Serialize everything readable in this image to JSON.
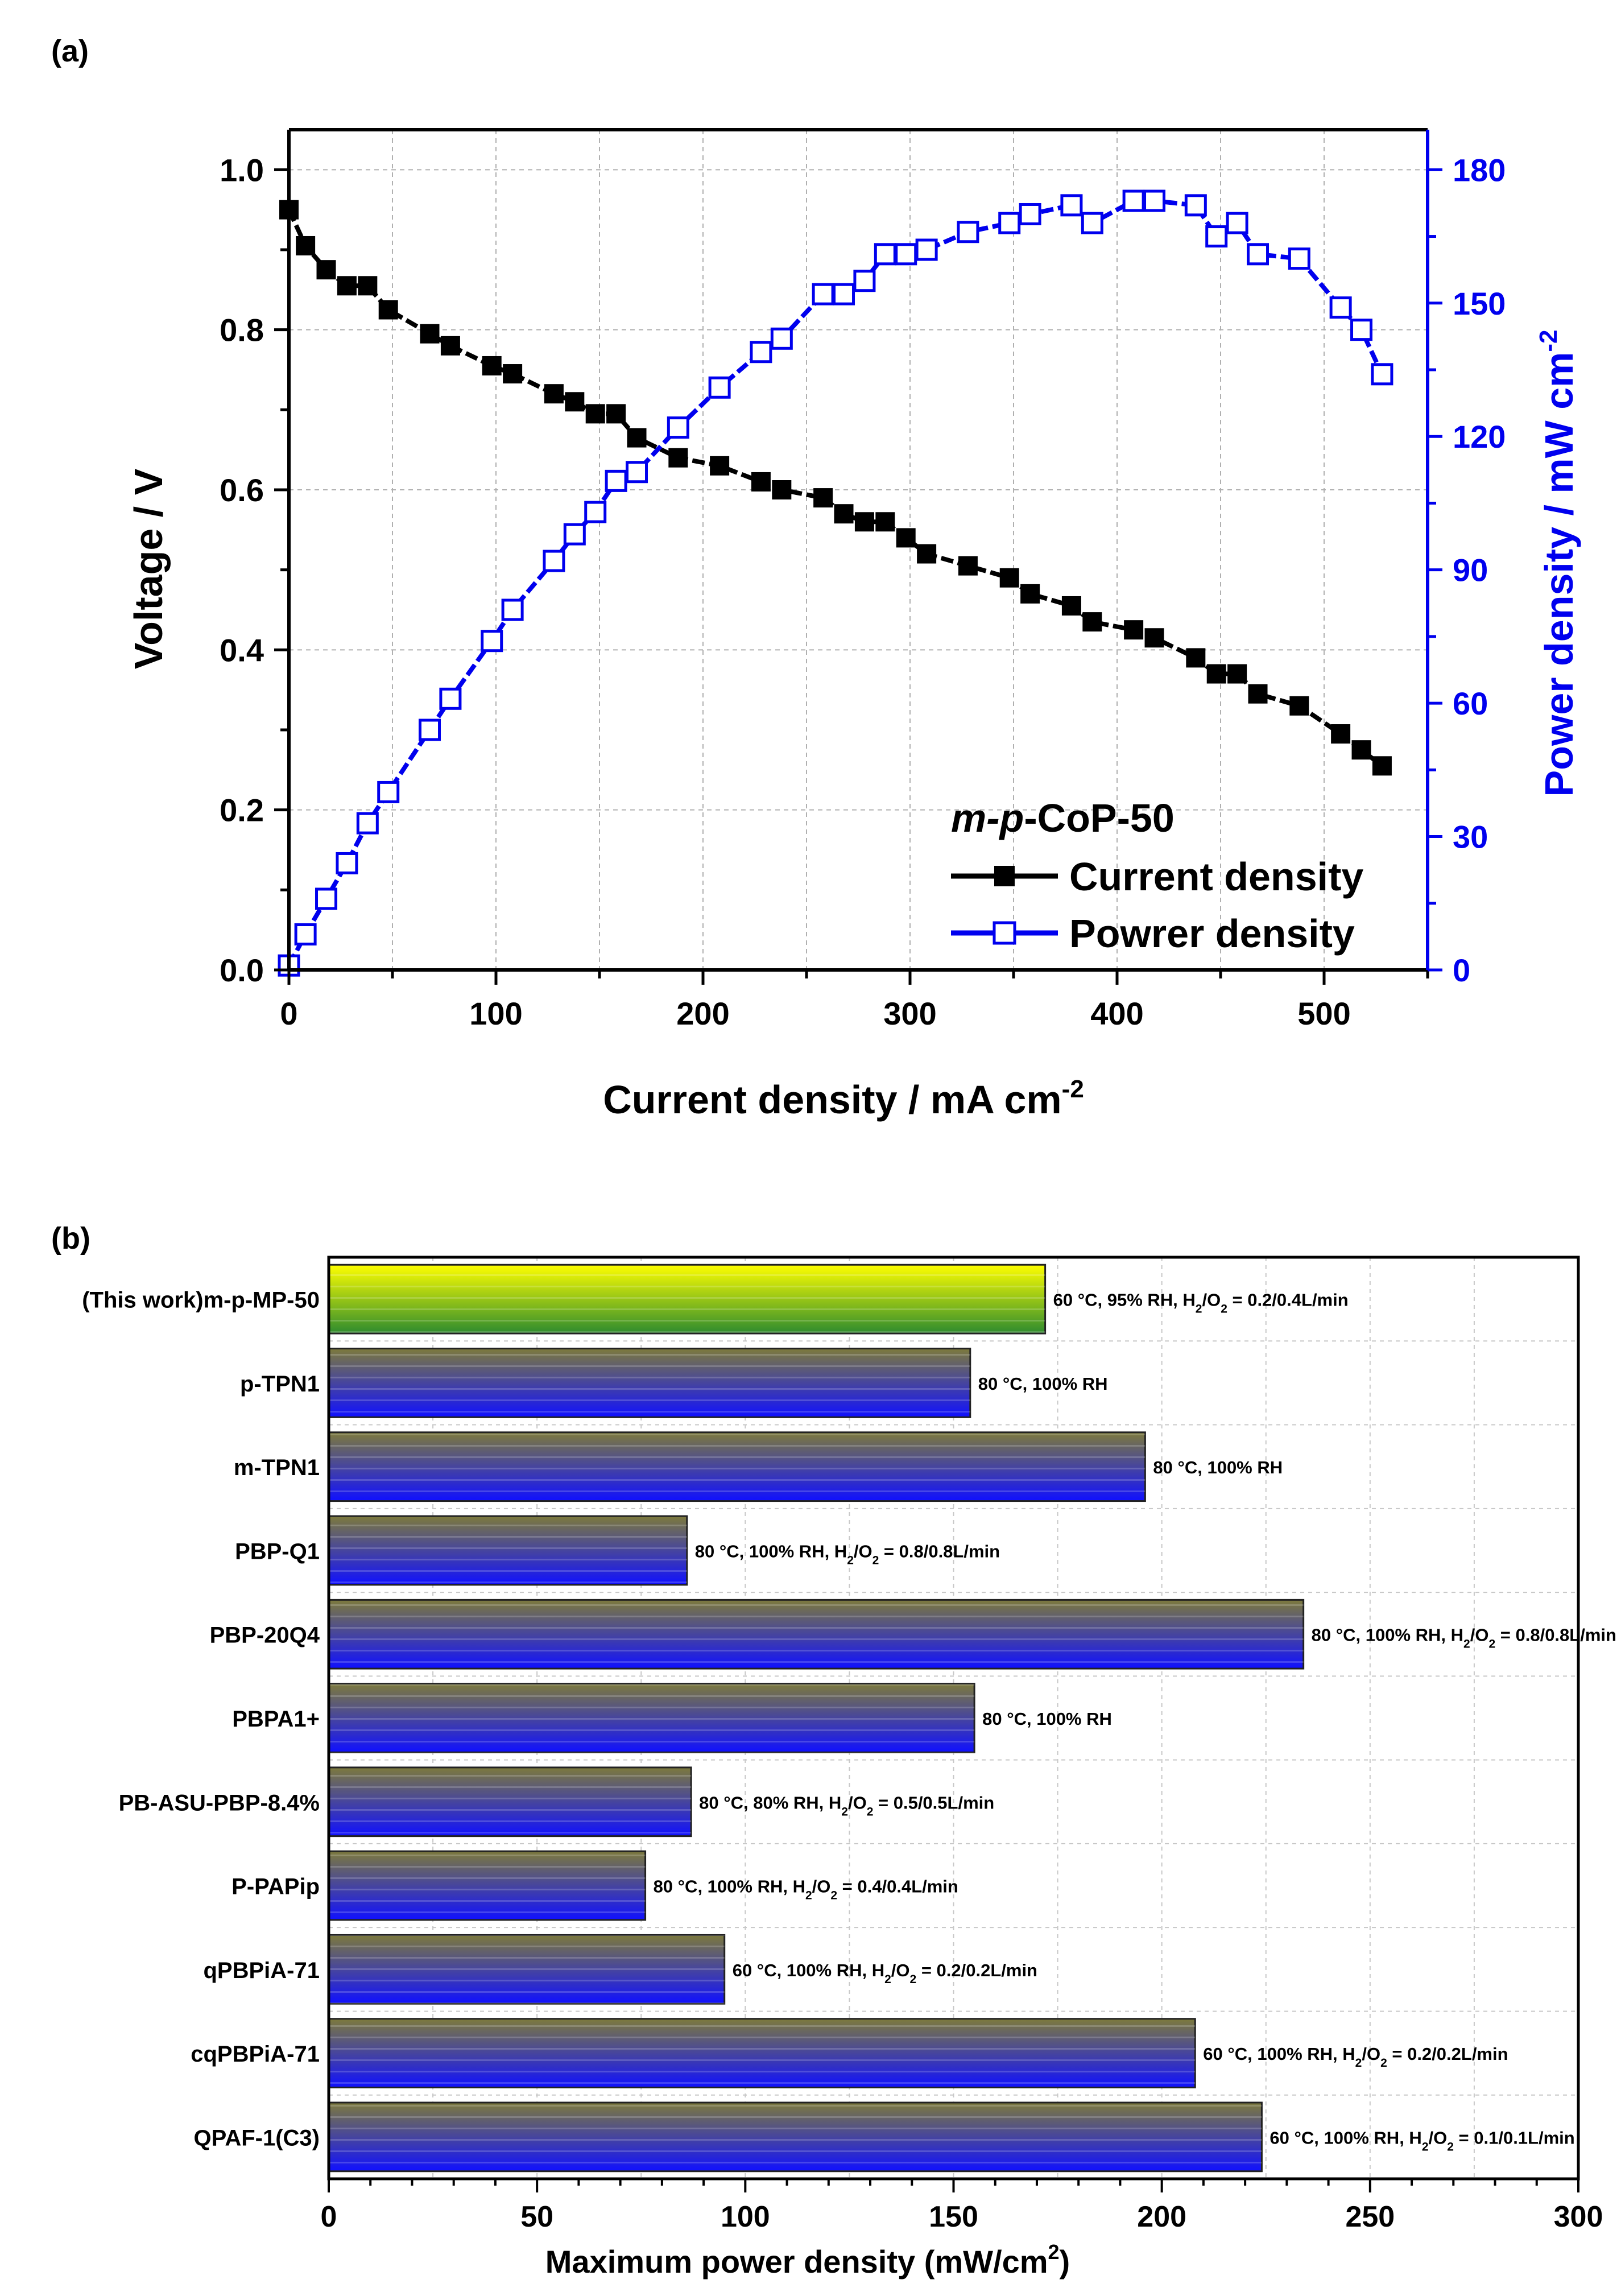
{
  "panel_a": {
    "label": "(a)",
    "xlabel": "Current density / mA cm",
    "xlabel_sup": "-2",
    "ylabel_left": "Voltage / V",
    "ylabel_right": "Power density / mW cm",
    "ylabel_right_sup": "-2",
    "legend_title_italic": "m-p",
    "legend_title_rest": "-CoP-50",
    "legend_placement": "bottom-right",
    "colors": {
      "voltage": "#000000",
      "power": "#0000ee"
    }
  },
  "panel_b": {
    "label": "(b)",
    "xlabel": "Maximum power density (mW/cm",
    "xlabel_sup": "2",
    "xlabel_end": ")",
    "colors": {
      "highlight_top": "#ffff00",
      "highlight_bottom": "#2e8b2e",
      "bar_top": "#7a7a3a",
      "bar_bottom": "#0000ff"
    }
  },
  "chart_data": [
    {
      "type": "line",
      "x": [
        0,
        8,
        18,
        28,
        38,
        48,
        68,
        78,
        98,
        108,
        128,
        138,
        148,
        158,
        168,
        188,
        208,
        228,
        238,
        258,
        268,
        278,
        288,
        298,
        308,
        328,
        348,
        358,
        378,
        388,
        408,
        418,
        438,
        448,
        458,
        468,
        488,
        508,
        518,
        528
      ],
      "series": [
        {
          "name": "Current density",
          "axis": "left",
          "values": [
            0.95,
            0.905,
            0.875,
            0.855,
            0.855,
            0.825,
            0.795,
            0.78,
            0.755,
            0.745,
            0.72,
            0.71,
            0.695,
            0.695,
            0.665,
            0.64,
            0.63,
            0.61,
            0.6,
            0.59,
            0.57,
            0.56,
            0.56,
            0.54,
            0.52,
            0.505,
            0.49,
            0.47,
            0.455,
            0.435,
            0.425,
            0.415,
            0.39,
            0.37,
            0.37,
            0.345,
            0.33,
            0.295,
            0.275,
            0.255
          ]
        },
        {
          "name": "Powrer density",
          "axis": "right",
          "values": [
            1,
            8,
            16,
            24,
            33,
            40,
            54,
            61,
            74,
            81,
            92,
            98,
            103,
            110,
            112,
            122,
            131,
            139,
            142,
            152,
            152,
            155,
            161,
            161,
            162,
            166,
            168,
            170,
            172,
            168,
            173,
            173,
            172,
            165,
            168,
            161,
            160,
            149,
            144,
            134
          ]
        }
      ],
      "xlim": [
        0,
        550
      ],
      "ylim_left": [
        0.0,
        1.05
      ],
      "ylim_right": [
        0,
        189
      ],
      "x_ticks": [
        0,
        100,
        200,
        300,
        400,
        500
      ],
      "y_ticks_left": [
        "0.0",
        "0.2",
        "0.4",
        "0.6",
        "0.8",
        "1.0"
      ],
      "y_ticks_right": [
        "0",
        "30",
        "60",
        "90",
        "120",
        "150",
        "180"
      ],
      "grid": true
    },
    {
      "type": "bar",
      "orientation": "horizontal",
      "categories": [
        "(This work)m-p-MP-50",
        "p-TPN1",
        "m-TPN1",
        "PBP-Q1",
        "PBP-20Q4",
        "PBPA1+",
        "PB-ASU-PBP-8.4%",
        "P-PAPip",
        "qPBPiA-71",
        "cqPBPiA-71",
        "QPAF-1(C3)"
      ],
      "values": [
        172,
        154,
        196,
        86,
        234,
        155,
        87,
        76,
        95,
        208,
        224
      ],
      "annotations": [
        {
          "main": "60 °C, 95% RH, H",
          "s1": "2",
          "mid": "/O",
          "s2": "2",
          "end": " = 0.2/0.4L/min"
        },
        {
          "main": "80 °C, 100% RH"
        },
        {
          "main": "80 °C, 100% RH"
        },
        {
          "main": "80 °C, 100% RH, H",
          "s1": "2",
          "mid": "/O",
          "s2": "2",
          "end": " = 0.8/0.8L/min"
        },
        {
          "main": "80 °C, 100% RH, H",
          "s1": "2",
          "mid": "/O",
          "s2": "2",
          "end": " = 0.8/0.8L/min"
        },
        {
          "main": "80 °C, 100% RH"
        },
        {
          "main": "80 °C, 80% RH, H",
          "s1": "2",
          "mid": "/O",
          "s2": "2",
          "end": " = 0.5/0.5L/min"
        },
        {
          "main": "80 °C, 100% RH, H",
          "s1": "2",
          "mid": "/O",
          "s2": "2",
          "end": " = 0.4/0.4L/min"
        },
        {
          "main": "60 °C, 100% RH, H",
          "s1": "2",
          "mid": "/O",
          "s2": "2",
          "end": " = 0.2/0.2L/min"
        },
        {
          "main": "60 °C, 100% RH, H",
          "s1": "2",
          "mid": "/O",
          "s2": "2",
          "end": " = 0.2/0.2L/min"
        },
        {
          "main": "60 °C, 100% RH, H",
          "s1": "2",
          "mid": "/O",
          "s2": "2",
          "end": " = 0.1/0.1L/min"
        }
      ],
      "xlim": [
        0,
        300
      ],
      "x_ticks": [
        0,
        50,
        100,
        150,
        200,
        250,
        300
      ],
      "grid": true
    }
  ]
}
